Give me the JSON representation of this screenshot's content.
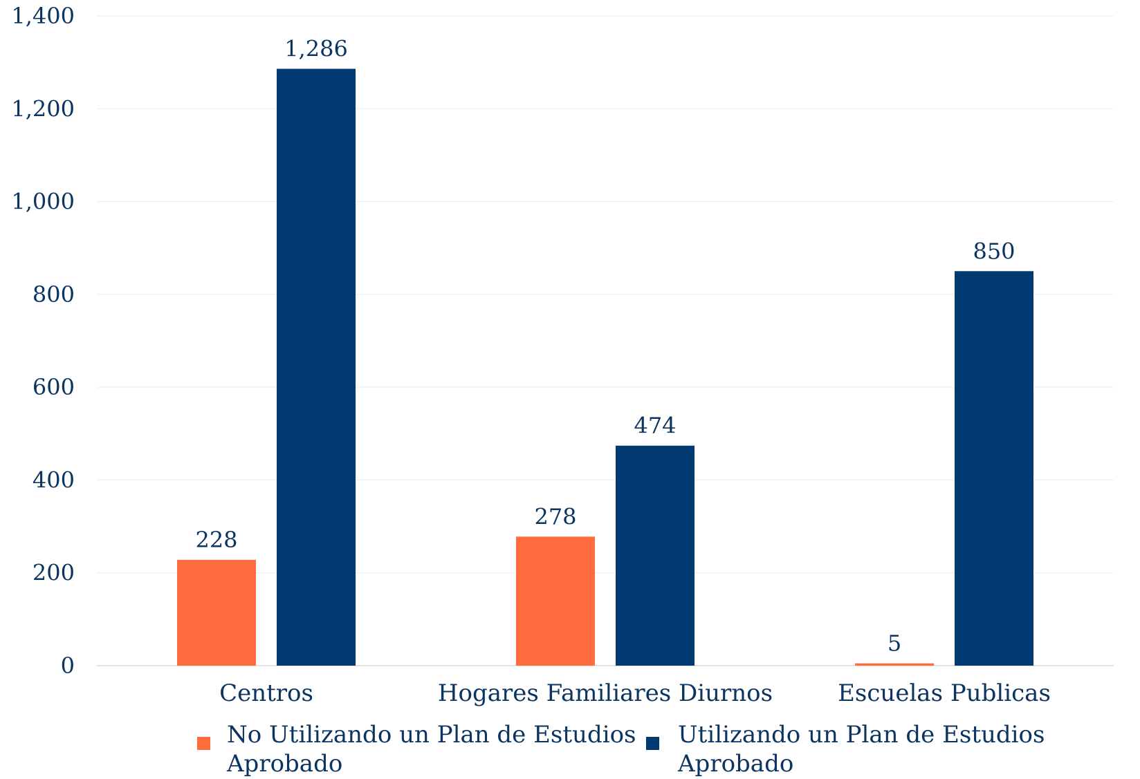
{
  "chart_data": {
    "type": "bar",
    "title": "",
    "xlabel": "",
    "ylabel": "",
    "categories": [
      "Centros",
      "Hogares Familiares Diurnos",
      "Escuelas Publicas"
    ],
    "series": [
      {
        "name": "No Utilizando un Plan de Estudios Aprobado",
        "color": "#ff6b3d",
        "values": [
          228,
          278,
          5
        ]
      },
      {
        "name": "Utilizando un Plan de Estudios Aprobado",
        "color": "#003a70",
        "values": [
          1286,
          474,
          850
        ]
      }
    ],
    "ylim": [
      0,
      1400
    ],
    "yticks": [
      0,
      200,
      400,
      600,
      800,
      1000,
      1200,
      1400
    ],
    "ytick_labels": [
      "0",
      "200",
      "400",
      "600",
      "800",
      "1,000",
      "1,200",
      "1,400"
    ],
    "data_labels": [
      [
        "228",
        "278",
        "5"
      ],
      [
        "1,286",
        "474",
        "850"
      ]
    ],
    "grid": true,
    "legend_position": "bottom"
  }
}
